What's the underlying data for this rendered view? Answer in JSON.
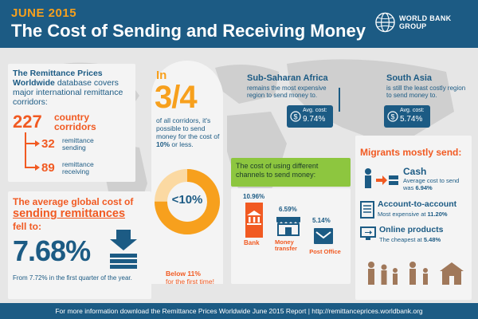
{
  "header": {
    "date": "JUNE 2015",
    "title": "The Cost of Sending and Receiving Money",
    "logo_text": "WORLD BANK GROUP"
  },
  "database": {
    "bold_intro": "The Remittance Prices Worldwide",
    "rest": "database covers major international remittance corridors:",
    "total_count": "227",
    "total_label": "country corridors",
    "sending_count": "32",
    "sending_label": "remittance sending",
    "receiving_count": "89",
    "receiving_label": "remittance receiving"
  },
  "fraction": {
    "in": "In",
    "value": "3/4",
    "text_start": "of all corridors, it's possible to send money for the cost of",
    "text_bold": "10%",
    "text_end": "or less.",
    "donut_label": "<10%",
    "donut_fraction": 0.75
  },
  "ssa": {
    "region": "Sub-Saharan Africa",
    "desc": "remains the most expensive region to send money to.",
    "avg_label": "Avg. cost:",
    "avg_value": "9.74%"
  },
  "south_asia": {
    "region": "South Asia",
    "desc": "is still the least costly region to send money to.",
    "avg_label": "Avg. cost:",
    "avg_value": "5.74%"
  },
  "global_cost": {
    "line1": "The average global cost of",
    "line2": "sending remittances",
    "line3": "fell to:",
    "value": "7.68%",
    "footnote": "From 7.72% in the first quarter of the year."
  },
  "channels": {
    "heading": "The cost of using different channels to send money:",
    "bank_value": "10.96%",
    "bank_label": "Bank",
    "money_value": "6.59%",
    "money_label": "Money transfer",
    "post_value": "5.14%",
    "post_label": "Post Office",
    "below_bold": "Below 11%",
    "below_rest": "for the first time!"
  },
  "migrants": {
    "heading": "Migrants mostly send:",
    "cash_title": "Cash",
    "cash_desc": "Average cost to send was",
    "cash_value": "6.94%",
    "acct_title": "Account-to-account",
    "acct_desc": "Most expensive at",
    "acct_value": "11.20%",
    "online_title": "Online products",
    "online_desc": "The cheapest at",
    "online_value": "5.48%"
  },
  "footer": {
    "text": "For more information download the Remittance Prices Worldwide June 2015 Report  |  http://remittanceprices.worldbank.org"
  },
  "colors": {
    "navy": "#1c5b84",
    "orange": "#f15a22",
    "amber": "#f7a01d",
    "green": "#8dc63f"
  }
}
